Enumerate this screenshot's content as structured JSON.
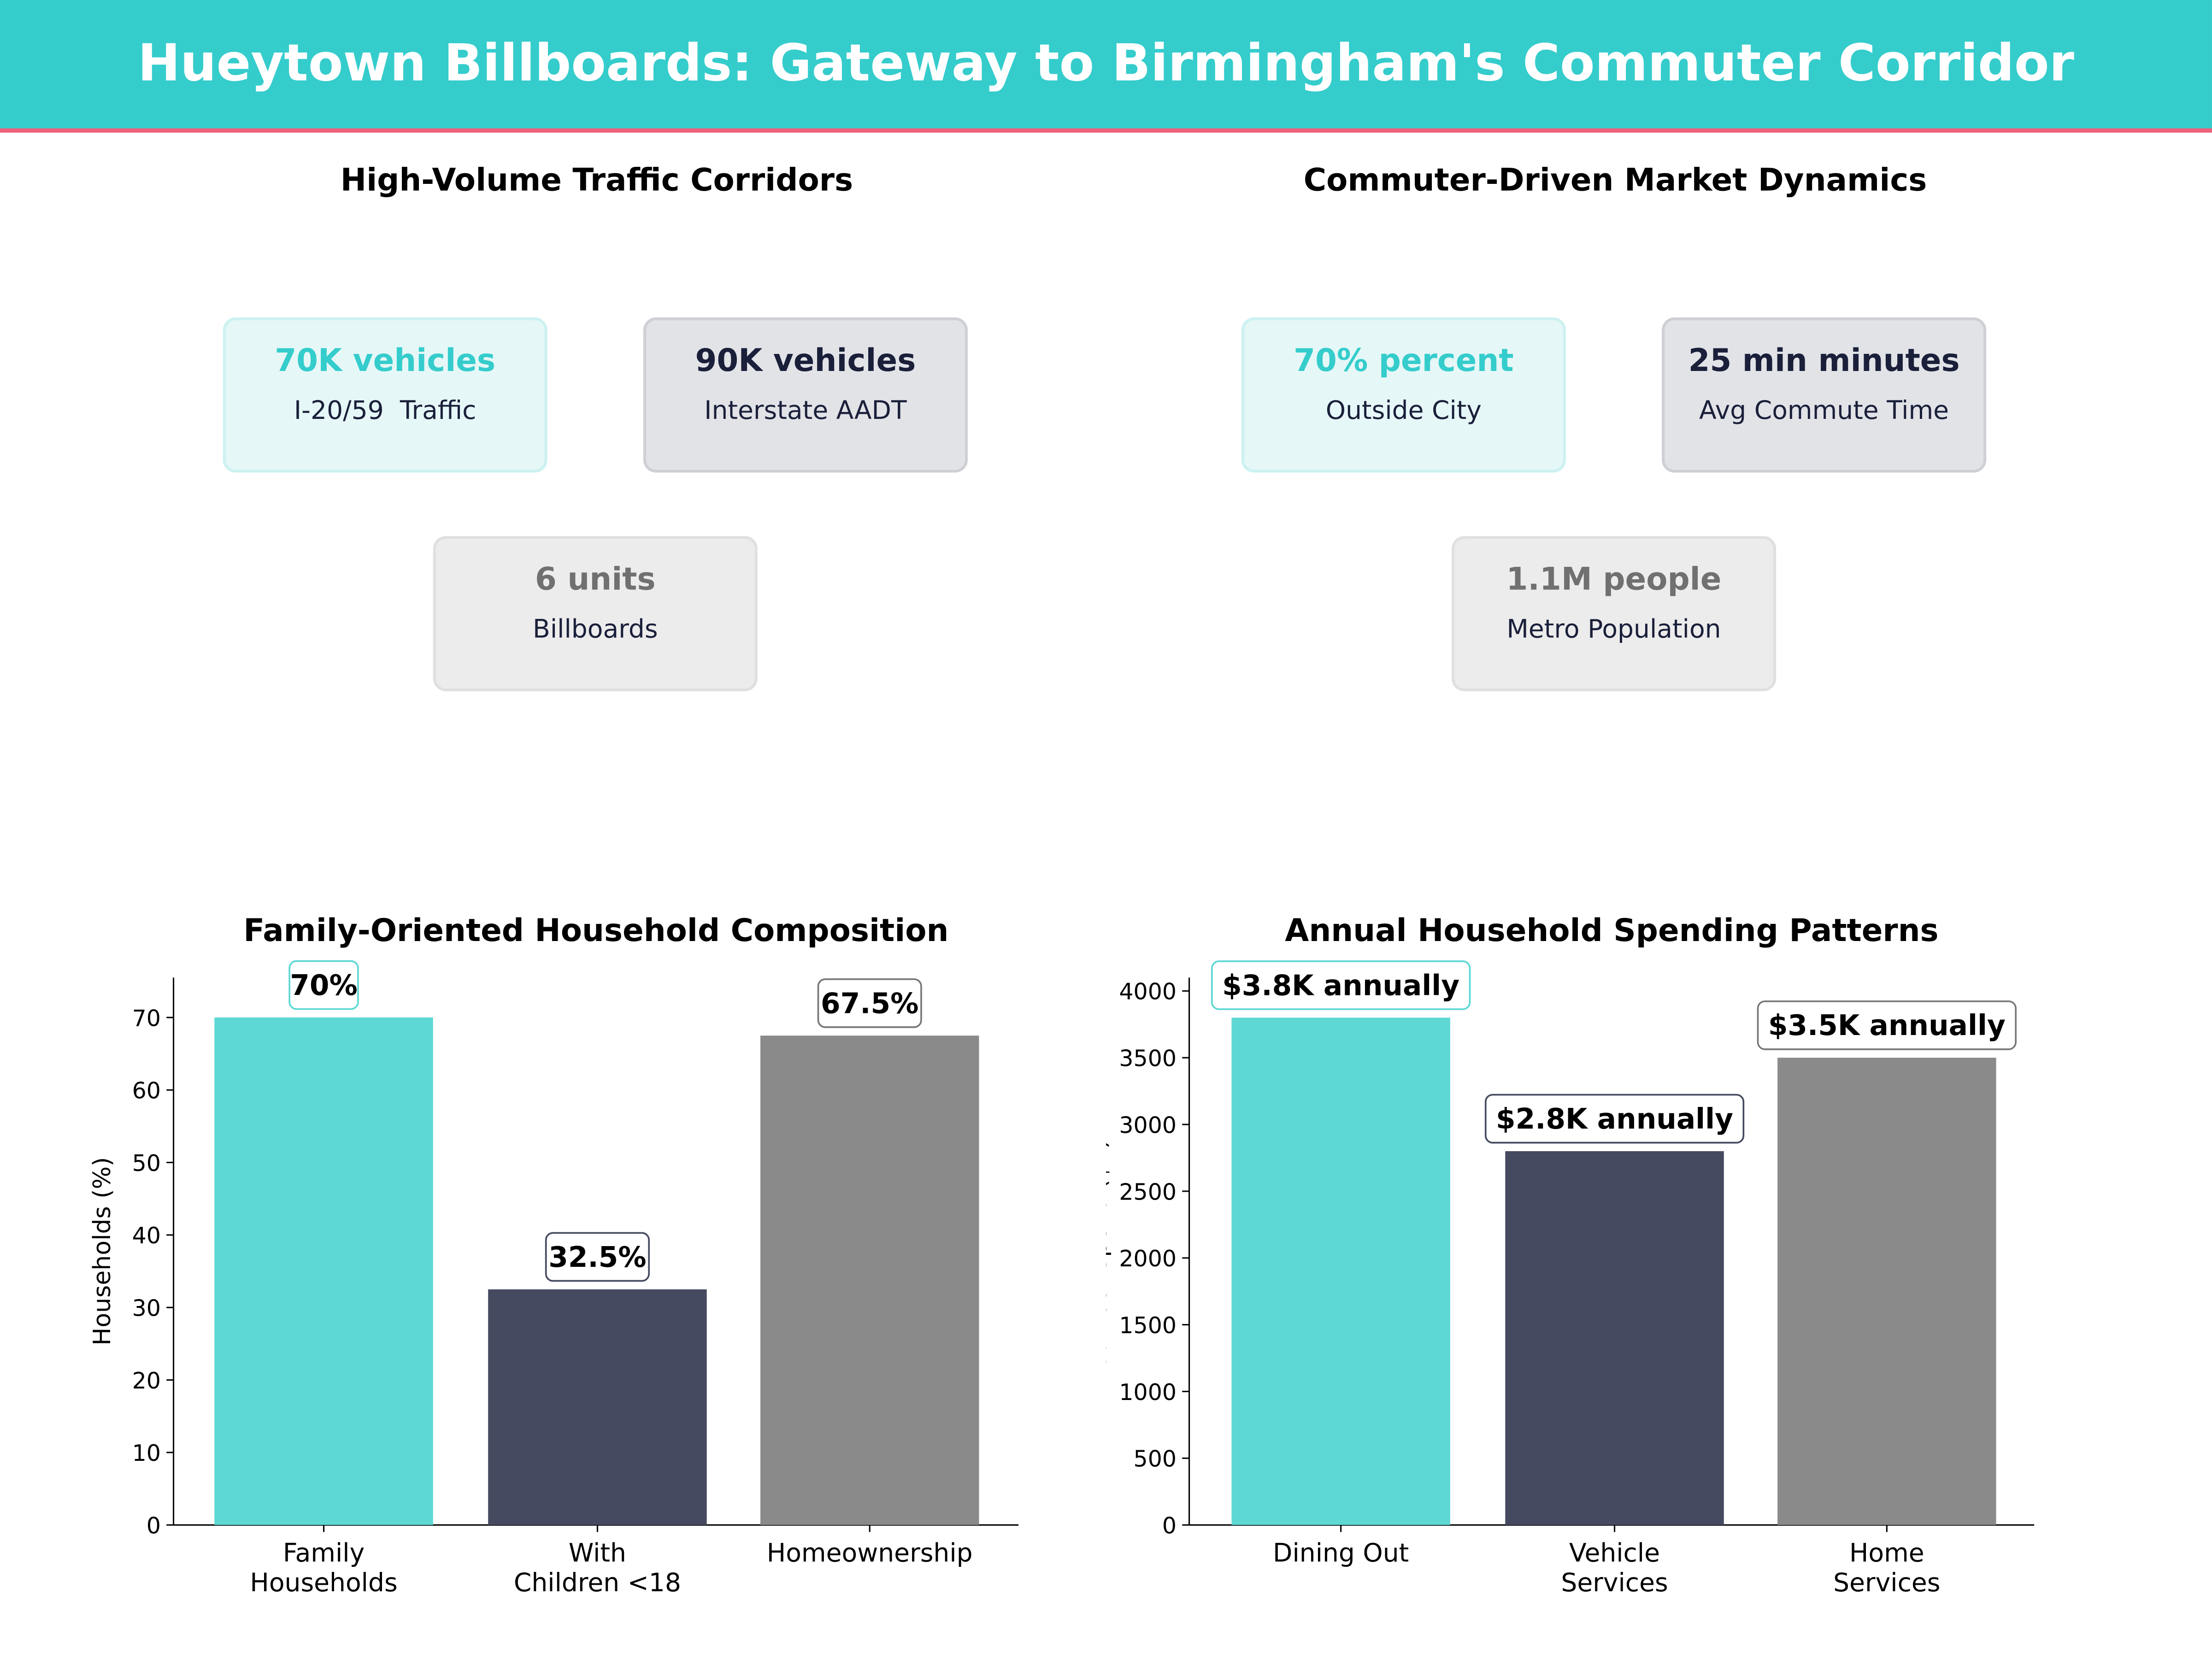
{
  "title": "Hueytown Billboards: Gateway to Birmingham's Commuter Corridor",
  "colors": {
    "header": "#35cccc",
    "accent_line": "#f0607a",
    "teal": "#5dd8d4",
    "dark": "#454a60",
    "gray": "#8a8a8a"
  },
  "traffic": {
    "title": "High-Volume Traffic Corridors",
    "cards": [
      {
        "value": "70K vehicles",
        "label": "I-20/59  Traffic"
      },
      {
        "value": "90K vehicles",
        "label": "Interstate AADT"
      },
      {
        "value": "6 units",
        "label": "Billboards"
      }
    ]
  },
  "market": {
    "title": "Commuter-Driven Market Dynamics",
    "cards": [
      {
        "value": "70% percent",
        "label": "Outside City"
      },
      {
        "value": "25 min minutes",
        "label": "Avg Commute Time"
      },
      {
        "value": "1.1M people",
        "label": "Metro Population"
      }
    ]
  },
  "chart_data": [
    {
      "type": "bar",
      "title": "Family-Oriented Household Composition",
      "ylabel": "Households (%)",
      "xlabel": "",
      "categories": [
        "Family\nHouseholds",
        "With\nChildren <18",
        "Homeownership"
      ],
      "values": [
        70,
        32.5,
        67.5
      ],
      "data_labels": [
        "70%",
        "32.5%",
        "67.5%"
      ],
      "yticks": [
        0,
        10,
        20,
        30,
        40,
        50,
        60,
        70
      ],
      "ylim": [
        0,
        75.5
      ],
      "grid": false
    },
    {
      "type": "bar",
      "title": "Annual Household Spending Patterns",
      "ylabel": "Annual Spend ($K)",
      "xlabel": "",
      "categories": [
        "Dining Out",
        "Vehicle\nServices",
        "Home\nServices"
      ],
      "values": [
        3800,
        2800,
        3500
      ],
      "data_labels": [
        "$3.8K annually",
        "$2.8K annually",
        "$3.5K annually"
      ],
      "yticks": [
        0,
        500,
        1000,
        1500,
        2000,
        2500,
        3000,
        3500,
        4000
      ],
      "ylim": [
        0,
        4100
      ],
      "grid": false
    }
  ]
}
